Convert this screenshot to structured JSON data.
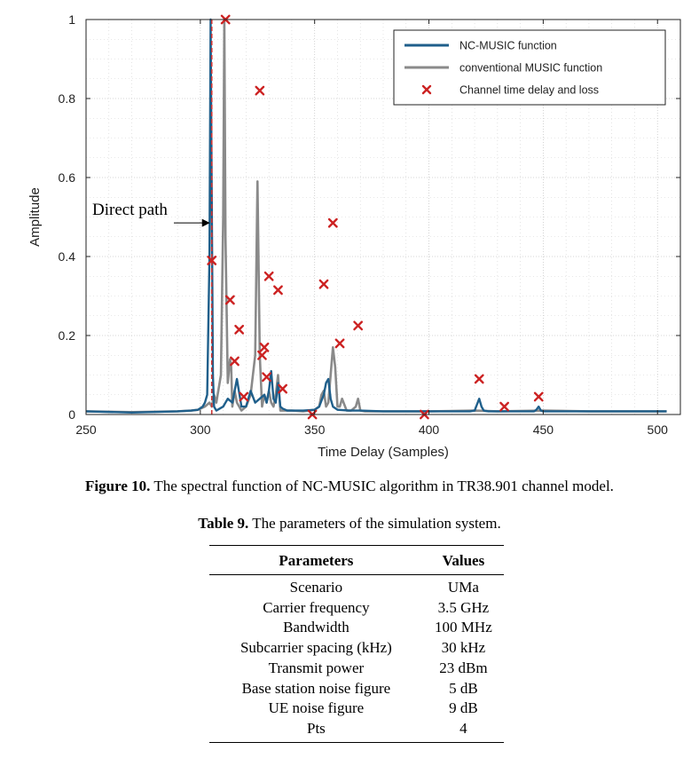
{
  "chart_data": {
    "type": "line",
    "xlabel": "Time Delay (Samples)",
    "ylabel": "Amplitude",
    "xlim": [
      250,
      510
    ],
    "ylim": [
      0,
      1
    ],
    "xticks": [
      "250",
      "300",
      "350",
      "400",
      "450",
      "500"
    ],
    "yticks": [
      "0",
      "0.2",
      "0.4",
      "0.6",
      "0.8",
      "1"
    ],
    "grid": true,
    "legend_position": "top-right",
    "colors": {
      "nc": "#1f5f8b",
      "conv": "#8a8a8a",
      "marker": "#cc2222",
      "dashed": "#cc3333"
    },
    "series": [
      {
        "name": "NC-MUSIC function",
        "x": [
          250,
          270,
          290,
          296,
          299,
          301,
          302,
          303,
          304,
          304.5,
          305,
          305.5,
          306,
          307,
          310,
          312,
          314,
          316,
          318,
          320,
          322,
          324,
          326,
          328,
          329,
          330,
          331,
          332,
          333,
          334,
          335,
          336,
          338,
          340,
          345,
          350,
          352,
          354,
          355,
          356,
          357,
          358,
          360,
          365,
          370,
          380,
          400,
          418,
          420,
          421,
          422,
          423,
          424,
          426,
          440,
          446,
          447,
          448,
          449,
          450,
          460,
          500,
          504
        ],
        "y": [
          0.008,
          0.005,
          0.008,
          0.01,
          0.012,
          0.02,
          0.03,
          0.05,
          0.4,
          1.0,
          0.55,
          0.1,
          0.02,
          0.01,
          0.02,
          0.04,
          0.03,
          0.09,
          0.02,
          0.02,
          0.06,
          0.03,
          0.04,
          0.05,
          0.03,
          0.06,
          0.11,
          0.04,
          0.03,
          0.08,
          0.02,
          0.015,
          0.01,
          0.01,
          0.01,
          0.012,
          0.02,
          0.05,
          0.08,
          0.09,
          0.04,
          0.02,
          0.012,
          0.01,
          0.01,
          0.008,
          0.008,
          0.008,
          0.01,
          0.025,
          0.04,
          0.02,
          0.01,
          0.008,
          0.008,
          0.008,
          0.012,
          0.02,
          0.01,
          0.008,
          0.008,
          0.008,
          0.008
        ]
      },
      {
        "name": "conventional MUSIC function",
        "x": [
          250,
          270,
          290,
          296,
          299,
          302,
          304,
          305,
          306,
          307,
          309,
          310,
          310.5,
          311,
          312,
          313,
          313.5,
          314,
          315,
          316,
          318,
          320,
          322,
          324,
          325,
          326,
          327,
          328,
          329,
          330,
          331,
          332,
          333,
          334,
          335,
          336,
          338,
          340,
          345,
          350,
          352,
          353,
          354,
          355,
          356,
          357,
          358,
          359,
          360,
          361,
          362,
          364,
          366,
          368,
          369,
          370,
          372,
          380,
          400,
          420,
          430,
          450,
          470,
          500,
          504
        ],
        "y": [
          0.008,
          0.006,
          0.008,
          0.01,
          0.012,
          0.02,
          0.03,
          0.02,
          0.05,
          0.03,
          0.1,
          0.5,
          1.0,
          0.45,
          0.08,
          0.14,
          0.12,
          0.02,
          0.06,
          0.03,
          0.01,
          0.02,
          0.05,
          0.15,
          0.59,
          0.15,
          0.02,
          0.05,
          0.03,
          0.06,
          0.03,
          0.02,
          0.05,
          0.1,
          0.01,
          0.01,
          0.01,
          0.01,
          0.008,
          0.012,
          0.02,
          0.05,
          0.06,
          0.02,
          0.03,
          0.1,
          0.17,
          0.12,
          0.02,
          0.02,
          0.04,
          0.01,
          0.01,
          0.02,
          0.04,
          0.01,
          0.008,
          0.008,
          0.008,
          0.01,
          0.008,
          0.01,
          0.008,
          0.008,
          0.008
        ]
      },
      {
        "name": "Channel time delay and loss",
        "type": "scatter",
        "x": [
          305,
          311,
          313,
          315,
          317,
          319,
          326,
          327,
          328,
          329,
          330,
          334,
          336,
          349,
          354,
          358,
          361,
          369,
          398,
          422,
          433,
          448
        ],
        "y": [
          0.39,
          1.0,
          0.29,
          0.135,
          0.215,
          0.045,
          0.82,
          0.15,
          0.17,
          0.095,
          0.35,
          0.315,
          0.065,
          0.0,
          0.33,
          0.485,
          0.18,
          0.225,
          0.0,
          0.09,
          0.02,
          0.045
        ]
      }
    ],
    "dashed_line_x": 305,
    "annotation": {
      "text": "Direct path",
      "x": 305,
      "y": 0.485
    }
  },
  "figure_caption": {
    "label": "Figure 10.",
    "text": "The spectral function of NC-MUSIC algorithm in TR38.901 channel model."
  },
  "table_caption": {
    "label": "Table 9.",
    "text": "The parameters of the simulation system."
  },
  "table": {
    "headers": [
      "Parameters",
      "Values"
    ],
    "rows": [
      [
        "Scenario",
        "UMa"
      ],
      [
        "Carrier frequency",
        "3.5 GHz"
      ],
      [
        "Bandwidth",
        "100 MHz"
      ],
      [
        "Subcarrier spacing (kHz)",
        "30 kHz"
      ],
      [
        "Transmit power",
        "23 dBm"
      ],
      [
        "Base station noise figure",
        "5 dB"
      ],
      [
        "UE noise figure",
        "9 dB"
      ],
      [
        "Pts",
        "4"
      ]
    ]
  }
}
